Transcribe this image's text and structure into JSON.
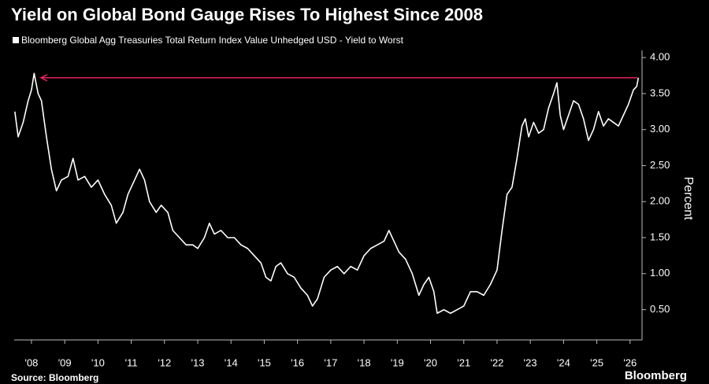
{
  "chart_data": {
    "type": "line",
    "title": "Yield on Global Bond Gauge Rises To Highest Since 2008",
    "y_label": "Percent",
    "source": "Source: Bloomberg",
    "brand": "Bloomberg",
    "series": [
      {
        "name": "Bloomberg Global Agg Treasuries Total Return Index Value Unhedged USD - Yield to Worst",
        "color": "#ffffff",
        "x": [
          2007.5,
          2007.6,
          2007.75,
          2007.9,
          2008.0,
          2008.08,
          2008.2,
          2008.3,
          2008.45,
          2008.6,
          2008.75,
          2008.9,
          2009.1,
          2009.25,
          2009.4,
          2009.6,
          2009.8,
          2010.0,
          2010.2,
          2010.4,
          2010.55,
          2010.75,
          2010.9,
          2011.1,
          2011.25,
          2011.4,
          2011.55,
          2011.75,
          2011.9,
          2012.1,
          2012.25,
          2012.45,
          2012.65,
          2012.85,
          2013.0,
          2013.2,
          2013.35,
          2013.5,
          2013.7,
          2013.9,
          2014.1,
          2014.3,
          2014.5,
          2014.7,
          2014.9,
          2015.05,
          2015.2,
          2015.35,
          2015.5,
          2015.7,
          2015.9,
          2016.1,
          2016.3,
          2016.45,
          2016.6,
          2016.8,
          2017.0,
          2017.2,
          2017.4,
          2017.6,
          2017.8,
          2018.0,
          2018.2,
          2018.4,
          2018.6,
          2018.75,
          2018.9,
          2019.05,
          2019.25,
          2019.45,
          2019.65,
          2019.8,
          2019.95,
          2020.1,
          2020.2,
          2020.4,
          2020.6,
          2020.8,
          2021.0,
          2021.2,
          2021.4,
          2021.6,
          2021.8,
          2022.0,
          2022.15,
          2022.3,
          2022.45,
          2022.6,
          2022.75,
          2022.85,
          2022.95,
          2023.1,
          2023.25,
          2023.4,
          2023.55,
          2023.7,
          2023.8,
          2023.9,
          2024.0,
          2024.15,
          2024.3,
          2024.45,
          2024.6,
          2024.75,
          2024.9,
          2025.05,
          2025.2,
          2025.35,
          2025.5,
          2025.65,
          2025.8,
          2025.95,
          2026.1,
          2026.2,
          2026.25
        ],
        "values": [
          3.25,
          2.9,
          3.1,
          3.4,
          3.55,
          3.78,
          3.5,
          3.4,
          2.9,
          2.45,
          2.15,
          2.3,
          2.35,
          2.6,
          2.3,
          2.35,
          2.2,
          2.3,
          2.1,
          1.95,
          1.7,
          1.85,
          2.1,
          2.3,
          2.45,
          2.3,
          2.0,
          1.85,
          1.95,
          1.85,
          1.6,
          1.5,
          1.4,
          1.4,
          1.35,
          1.5,
          1.7,
          1.55,
          1.6,
          1.5,
          1.5,
          1.4,
          1.35,
          1.25,
          1.15,
          0.95,
          0.9,
          1.1,
          1.15,
          1.0,
          0.95,
          0.8,
          0.7,
          0.55,
          0.65,
          0.95,
          1.05,
          1.1,
          1.0,
          1.1,
          1.05,
          1.25,
          1.35,
          1.4,
          1.45,
          1.6,
          1.45,
          1.3,
          1.2,
          1.0,
          0.7,
          0.85,
          0.95,
          0.75,
          0.45,
          0.5,
          0.45,
          0.5,
          0.55,
          0.75,
          0.75,
          0.7,
          0.85,
          1.05,
          1.6,
          2.1,
          2.2,
          2.6,
          3.05,
          3.15,
          2.9,
          3.1,
          2.95,
          3.0,
          3.3,
          3.5,
          3.65,
          3.2,
          3.0,
          3.2,
          3.4,
          3.35,
          3.15,
          2.85,
          3.0,
          3.25,
          3.05,
          3.15,
          3.1,
          3.05,
          3.2,
          3.35,
          3.55,
          3.6,
          3.72
        ]
      }
    ],
    "hline": {
      "value": 3.72,
      "color": "#e0245e"
    },
    "xlim": [
      2007.48,
      2026.36
    ],
    "ylim": [
      0.08,
      4.1
    ],
    "xticks": [
      {
        "value": 2008,
        "label": "'08"
      },
      {
        "value": 2009,
        "label": "'09"
      },
      {
        "value": 2010,
        "label": "'10"
      },
      {
        "value": 2011,
        "label": "'11"
      },
      {
        "value": 2012,
        "label": "'12"
      },
      {
        "value": 2013,
        "label": "'13"
      },
      {
        "value": 2014,
        "label": "'14"
      },
      {
        "value": 2015,
        "label": "'15"
      },
      {
        "value": 2016,
        "label": "'16"
      },
      {
        "value": 2017,
        "label": "'17"
      },
      {
        "value": 2018,
        "label": "'18"
      },
      {
        "value": 2019,
        "label": "'19"
      },
      {
        "value": 2020,
        "label": "'20"
      },
      {
        "value": 2021,
        "label": "'21"
      },
      {
        "value": 2022,
        "label": "'22"
      },
      {
        "value": 2023,
        "label": "'23"
      },
      {
        "value": 2024,
        "label": "'24"
      },
      {
        "value": 2025,
        "label": "'25"
      },
      {
        "value": 2026,
        "label": "'26"
      }
    ],
    "yticks": [
      {
        "value": 0.5,
        "label": "0.50"
      },
      {
        "value": 1,
        "label": "1.00"
      },
      {
        "value": 1.5,
        "label": "1.50"
      },
      {
        "value": 2,
        "label": "2.00"
      },
      {
        "value": 2.5,
        "label": "2.50"
      },
      {
        "value": 3,
        "label": "3.00"
      },
      {
        "value": 3.5,
        "label": "3.50"
      },
      {
        "value": 4,
        "label": "4.00"
      }
    ]
  }
}
